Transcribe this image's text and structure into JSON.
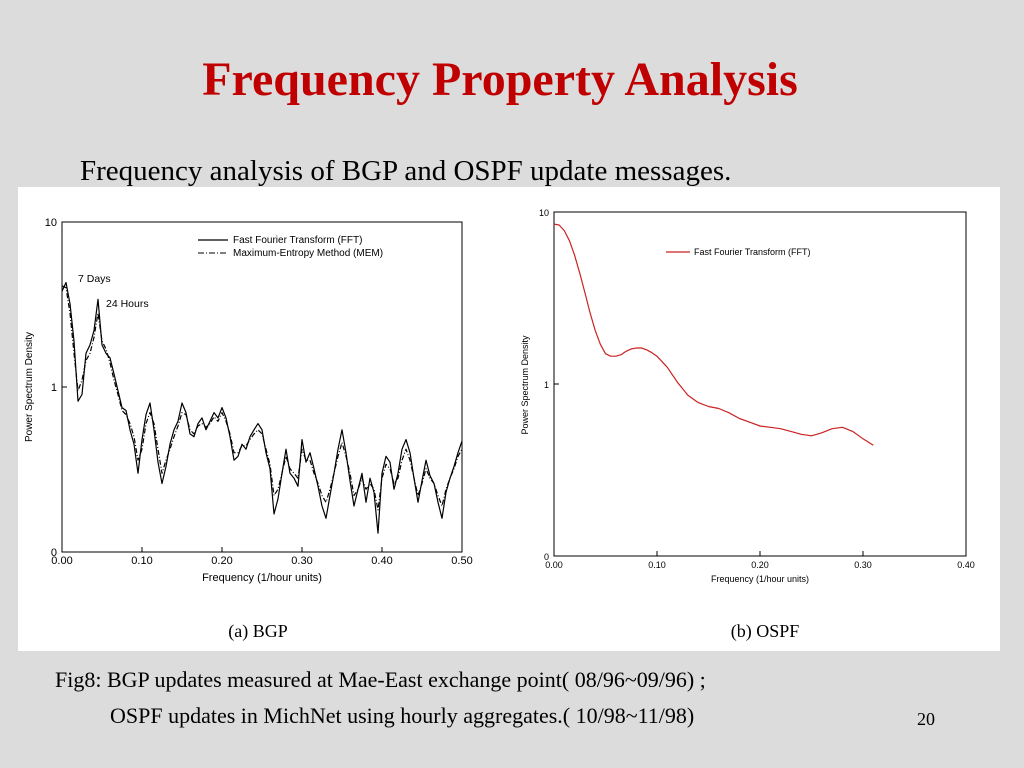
{
  "slide": {
    "title": "Frequency Property Analysis",
    "subtitle": "Frequency analysis of BGP and OSPF update messages.",
    "caption_line1": "Fig8: BGP updates measured at Mae-East exchange point( 08/96~09/96) ;",
    "caption_line2": "OSPF updates in MichNet using hourly aggregates.( 10/98~11/98)",
    "page_number": "20"
  },
  "chart_data": [
    {
      "type": "line",
      "panel_label": "(a) BGP",
      "xlabel": "Frequency (1/hour units)",
      "ylabel": "Power Spectrum Density",
      "xlim": [
        0.0,
        0.5
      ],
      "x_ticks": [
        "0.00",
        "0.10",
        "0.20",
        "0.30",
        "0.40",
        "0.50"
      ],
      "y_ticks": [
        "0",
        "1",
        "10"
      ],
      "y_scale": "log",
      "legend_position": "top-right",
      "annotations": [
        "7 Days",
        "24 Hours"
      ],
      "series": [
        {
          "name": "Fast Fourier Transform (FFT)",
          "color": "#000000",
          "style": "solid",
          "x": [
            0.0,
            0.005,
            0.01,
            0.015,
            0.02,
            0.025,
            0.03,
            0.035,
            0.04,
            0.045,
            0.05,
            0.055,
            0.06,
            0.065,
            0.07,
            0.075,
            0.08,
            0.085,
            0.09,
            0.095,
            0.1,
            0.105,
            0.11,
            0.115,
            0.12,
            0.125,
            0.13,
            0.135,
            0.14,
            0.145,
            0.15,
            0.155,
            0.16,
            0.165,
            0.17,
            0.175,
            0.18,
            0.185,
            0.19,
            0.195,
            0.2,
            0.205,
            0.21,
            0.215,
            0.22,
            0.225,
            0.23,
            0.235,
            0.24,
            0.245,
            0.25,
            0.255,
            0.26,
            0.265,
            0.27,
            0.275,
            0.28,
            0.285,
            0.29,
            0.295,
            0.3,
            0.305,
            0.31,
            0.315,
            0.32,
            0.325,
            0.33,
            0.335,
            0.34,
            0.345,
            0.35,
            0.355,
            0.36,
            0.365,
            0.37,
            0.375,
            0.38,
            0.385,
            0.39,
            0.395,
            0.4,
            0.405,
            0.41,
            0.415,
            0.42,
            0.425,
            0.43,
            0.435,
            0.44,
            0.445,
            0.45,
            0.455,
            0.46,
            0.465,
            0.47,
            0.475,
            0.48,
            0.485,
            0.49,
            0.495,
            0.5
          ],
          "y": [
            3.8,
            4.3,
            3.2,
            1.9,
            0.82,
            0.9,
            1.6,
            1.8,
            2.2,
            3.4,
            1.8,
            1.6,
            1.5,
            1.2,
            0.95,
            0.75,
            0.72,
            0.55,
            0.45,
            0.3,
            0.48,
            0.68,
            0.8,
            0.55,
            0.35,
            0.26,
            0.33,
            0.45,
            0.55,
            0.62,
            0.8,
            0.7,
            0.52,
            0.5,
            0.6,
            0.65,
            0.55,
            0.62,
            0.7,
            0.65,
            0.75,
            0.65,
            0.5,
            0.36,
            0.38,
            0.45,
            0.42,
            0.5,
            0.55,
            0.6,
            0.55,
            0.4,
            0.32,
            0.17,
            0.21,
            0.3,
            0.42,
            0.3,
            0.28,
            0.25,
            0.48,
            0.35,
            0.4,
            0.32,
            0.25,
            0.19,
            0.16,
            0.22,
            0.3,
            0.42,
            0.55,
            0.4,
            0.27,
            0.19,
            0.24,
            0.3,
            0.2,
            0.28,
            0.23,
            0.13,
            0.3,
            0.38,
            0.35,
            0.24,
            0.3,
            0.42,
            0.48,
            0.4,
            0.28,
            0.2,
            0.27,
            0.36,
            0.29,
            0.26,
            0.2,
            0.16,
            0.23,
            0.28,
            0.33,
            0.4,
            0.47
          ]
        },
        {
          "name": "Maximum-Entropy Method (MEM)",
          "color": "#000000",
          "style": "dashdot",
          "x": [
            0.0,
            0.005,
            0.01,
            0.015,
            0.02,
            0.025,
            0.03,
            0.035,
            0.04,
            0.045,
            0.05,
            0.055,
            0.06,
            0.065,
            0.07,
            0.075,
            0.08,
            0.085,
            0.09,
            0.095,
            0.1,
            0.105,
            0.11,
            0.115,
            0.12,
            0.125,
            0.13,
            0.135,
            0.14,
            0.145,
            0.15,
            0.155,
            0.16,
            0.165,
            0.17,
            0.175,
            0.18,
            0.185,
            0.19,
            0.195,
            0.2,
            0.205,
            0.21,
            0.215,
            0.22,
            0.225,
            0.23,
            0.235,
            0.24,
            0.245,
            0.25,
            0.255,
            0.26,
            0.265,
            0.27,
            0.275,
            0.28,
            0.285,
            0.29,
            0.295,
            0.3,
            0.305,
            0.31,
            0.315,
            0.32,
            0.325,
            0.33,
            0.335,
            0.34,
            0.345,
            0.35,
            0.355,
            0.36,
            0.365,
            0.37,
            0.375,
            0.38,
            0.385,
            0.39,
            0.395,
            0.4,
            0.405,
            0.41,
            0.415,
            0.42,
            0.425,
            0.43,
            0.435,
            0.44,
            0.445,
            0.45,
            0.455,
            0.46,
            0.465,
            0.47,
            0.475,
            0.48,
            0.485,
            0.49,
            0.495,
            0.5
          ],
          "y": [
            4.1,
            4.0,
            2.8,
            1.6,
            0.95,
            1.1,
            1.45,
            1.6,
            2.0,
            2.8,
            1.9,
            1.7,
            1.4,
            1.1,
            0.9,
            0.72,
            0.68,
            0.6,
            0.5,
            0.36,
            0.42,
            0.6,
            0.7,
            0.6,
            0.42,
            0.3,
            0.36,
            0.42,
            0.5,
            0.58,
            0.7,
            0.68,
            0.55,
            0.52,
            0.58,
            0.6,
            0.57,
            0.6,
            0.66,
            0.62,
            0.7,
            0.62,
            0.52,
            0.4,
            0.4,
            0.44,
            0.44,
            0.48,
            0.52,
            0.55,
            0.52,
            0.42,
            0.34,
            0.22,
            0.24,
            0.3,
            0.38,
            0.32,
            0.3,
            0.28,
            0.42,
            0.36,
            0.36,
            0.3,
            0.26,
            0.22,
            0.2,
            0.24,
            0.3,
            0.38,
            0.46,
            0.38,
            0.3,
            0.22,
            0.24,
            0.28,
            0.24,
            0.26,
            0.24,
            0.18,
            0.28,
            0.34,
            0.32,
            0.26,
            0.28,
            0.36,
            0.42,
            0.36,
            0.28,
            0.22,
            0.26,
            0.32,
            0.28,
            0.26,
            0.22,
            0.19,
            0.24,
            0.28,
            0.32,
            0.38,
            0.42
          ]
        }
      ]
    },
    {
      "type": "line",
      "panel_label": "(b) OSPF",
      "xlabel": "Frequency (1/hour units)",
      "ylabel": "Power Spectrum Density",
      "xlim": [
        0.0,
        0.4
      ],
      "x_ticks": [
        "0.00",
        "0.10",
        "0.20",
        "0.30",
        "0.40"
      ],
      "y_ticks": [
        "0",
        "1",
        "10"
      ],
      "y_scale": "log",
      "legend_position": "top-right",
      "series": [
        {
          "name": "Fast Fourier Transform (FFT)",
          "color": "#cc2222",
          "style": "solid",
          "x": [
            0.0,
            0.005,
            0.01,
            0.015,
            0.02,
            0.025,
            0.03,
            0.035,
            0.04,
            0.045,
            0.05,
            0.055,
            0.06,
            0.065,
            0.07,
            0.075,
            0.08,
            0.085,
            0.09,
            0.095,
            0.1,
            0.11,
            0.12,
            0.13,
            0.14,
            0.15,
            0.16,
            0.17,
            0.18,
            0.19,
            0.2,
            0.21,
            0.22,
            0.23,
            0.24,
            0.25,
            0.26,
            0.27,
            0.28,
            0.29,
            0.3,
            0.31
          ],
          "y": [
            8.5,
            8.4,
            7.8,
            6.8,
            5.6,
            4.4,
            3.4,
            2.6,
            2.05,
            1.7,
            1.5,
            1.45,
            1.45,
            1.48,
            1.55,
            1.6,
            1.62,
            1.62,
            1.58,
            1.52,
            1.45,
            1.25,
            1.02,
            0.86,
            0.78,
            0.74,
            0.72,
            0.68,
            0.63,
            0.6,
            0.57,
            0.56,
            0.55,
            0.53,
            0.51,
            0.5,
            0.52,
            0.55,
            0.56,
            0.53,
            0.48,
            0.44
          ]
        }
      ]
    }
  ]
}
